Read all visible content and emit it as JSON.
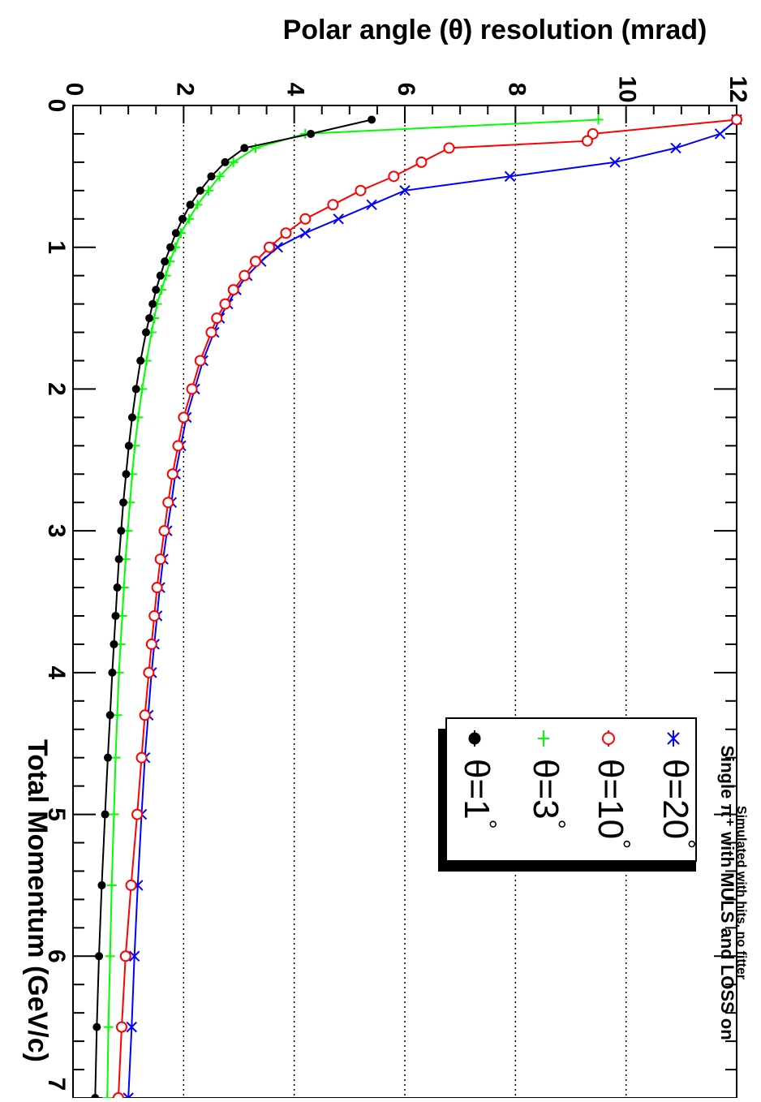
{
  "chart_data": {
    "type": "line",
    "title": "",
    "xlabel": "Total Momentum (GeV/c)",
    "ylabel": "Polar angle (θ) resolution (mrad)",
    "xlim": [
      0,
      7
    ],
    "ylim": [
      0,
      12
    ],
    "x_ticks": [
      "0",
      "1",
      "2",
      "3",
      "4",
      "5",
      "6",
      "7"
    ],
    "y_ticks": [
      "0",
      "2",
      "4",
      "6",
      "8",
      "10",
      "12"
    ],
    "grid": {
      "y_dotted_at": [
        2,
        4,
        6,
        8,
        10
      ]
    },
    "legend_position": "bottom-right",
    "annotations": {
      "line1": "Simulated with hits, no fitter",
      "line2": "Single π⁺ with MULS and LOSS on"
    },
    "series": [
      {
        "name": "θ=20°",
        "label_base": "θ=20",
        "color": "#0000ff",
        "marker": "x",
        "x": [
          0.1,
          0.2,
          0.3,
          0.4,
          0.5,
          0.6,
          0.7,
          0.8,
          0.9,
          1.0,
          1.1,
          1.2,
          1.3,
          1.4,
          1.5,
          1.6,
          1.8,
          2.0,
          2.2,
          2.4,
          2.6,
          2.8,
          3.0,
          3.2,
          3.4,
          3.6,
          3.8,
          4.0,
          4.3,
          4.6,
          5.0,
          5.5,
          6.0,
          6.5,
          7.0
        ],
        "y": [
          12.0,
          11.7,
          10.9,
          9.8,
          7.9,
          6.0,
          5.4,
          4.8,
          4.2,
          3.7,
          3.4,
          3.15,
          2.95,
          2.8,
          2.65,
          2.55,
          2.35,
          2.2,
          2.05,
          1.95,
          1.85,
          1.78,
          1.7,
          1.63,
          1.57,
          1.52,
          1.47,
          1.42,
          1.36,
          1.3,
          1.24,
          1.17,
          1.11,
          1.06,
          1.0
        ]
      },
      {
        "name": "θ=10°",
        "label_base": "θ=10",
        "color": "#ff0000",
        "marker": "circle-open",
        "x": [
          0.1,
          0.2,
          0.25,
          0.3,
          0.4,
          0.5,
          0.6,
          0.7,
          0.8,
          0.9,
          1.0,
          1.1,
          1.2,
          1.3,
          1.4,
          1.5,
          1.6,
          1.8,
          2.0,
          2.2,
          2.4,
          2.6,
          2.8,
          3.0,
          3.2,
          3.4,
          3.6,
          3.8,
          4.0,
          4.3,
          4.6,
          5.0,
          5.5,
          6.0,
          6.5,
          7.0
        ],
        "y": [
          12.0,
          9.4,
          9.3,
          6.8,
          6.3,
          5.8,
          5.2,
          4.7,
          4.2,
          3.85,
          3.55,
          3.3,
          3.1,
          2.9,
          2.75,
          2.6,
          2.5,
          2.3,
          2.15,
          2.0,
          1.9,
          1.8,
          1.72,
          1.65,
          1.58,
          1.52,
          1.47,
          1.42,
          1.37,
          1.3,
          1.24,
          1.16,
          1.05,
          0.95,
          0.88,
          0.82
        ]
      },
      {
        "name": "θ=3°",
        "label_base": "θ=3",
        "color": "#00ff00",
        "marker": "plus",
        "x": [
          0.1,
          0.2,
          0.3,
          0.4,
          0.5,
          0.6,
          0.7,
          0.8,
          0.9,
          1.0,
          1.1,
          1.2,
          1.3,
          1.4,
          1.5,
          1.6,
          1.8,
          2.0,
          2.2,
          2.4,
          2.6,
          2.8,
          3.0,
          3.2,
          3.4,
          3.6,
          3.8,
          4.0,
          4.3,
          4.6,
          5.0,
          5.5,
          6.0,
          6.5,
          7.0
        ],
        "y": [
          9.5,
          4.2,
          3.3,
          2.9,
          2.65,
          2.45,
          2.25,
          2.1,
          1.95,
          1.85,
          1.75,
          1.68,
          1.6,
          1.52,
          1.47,
          1.42,
          1.33,
          1.25,
          1.18,
          1.12,
          1.07,
          1.03,
          0.99,
          0.95,
          0.92,
          0.89,
          0.86,
          0.83,
          0.8,
          0.77,
          0.74,
          0.7,
          0.67,
          0.64,
          0.62
        ]
      },
      {
        "name": "θ=1°",
        "label_base": "θ=1",
        "color": "#000000",
        "marker": "circle-filled",
        "x": [
          0.1,
          0.2,
          0.3,
          0.4,
          0.5,
          0.6,
          0.7,
          0.8,
          0.9,
          1.0,
          1.1,
          1.2,
          1.3,
          1.4,
          1.5,
          1.6,
          1.8,
          2.0,
          2.2,
          2.4,
          2.6,
          2.8,
          3.0,
          3.2,
          3.4,
          3.6,
          3.8,
          4.0,
          4.3,
          4.6,
          5.0,
          5.5,
          6.0,
          6.5,
          7.0
        ],
        "y": [
          5.4,
          4.3,
          3.1,
          2.75,
          2.5,
          2.3,
          2.12,
          1.98,
          1.86,
          1.76,
          1.66,
          1.58,
          1.5,
          1.44,
          1.38,
          1.32,
          1.22,
          1.14,
          1.07,
          1.01,
          0.96,
          0.91,
          0.87,
          0.83,
          0.8,
          0.77,
          0.74,
          0.71,
          0.67,
          0.63,
          0.58,
          0.52,
          0.47,
          0.43,
          0.4
        ]
      }
    ]
  }
}
